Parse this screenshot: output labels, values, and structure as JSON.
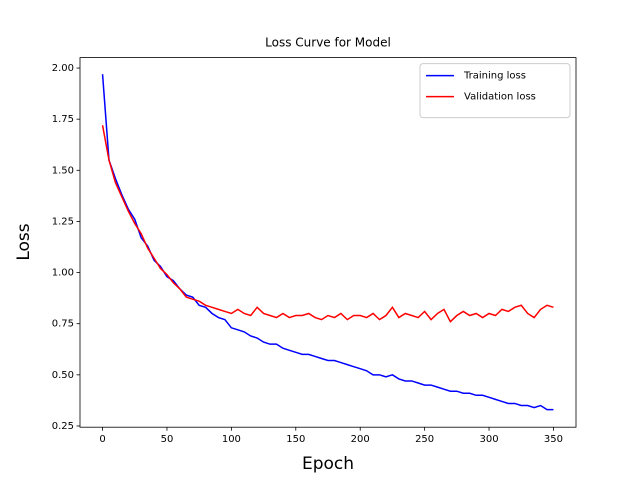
{
  "chart_data": {
    "type": "line",
    "title": "Loss Curve for  Model",
    "x_label": "Epoch",
    "y_label": "Loss",
    "x": [
      0,
      5,
      10,
      15,
      20,
      25,
      30,
      35,
      40,
      45,
      50,
      55,
      60,
      65,
      70,
      75,
      80,
      85,
      90,
      95,
      100,
      105,
      110,
      115,
      120,
      125,
      130,
      135,
      140,
      145,
      150,
      155,
      160,
      165,
      170,
      175,
      180,
      185,
      190,
      195,
      200,
      205,
      210,
      215,
      220,
      225,
      230,
      235,
      240,
      245,
      250,
      255,
      260,
      265,
      270,
      275,
      280,
      285,
      290,
      295,
      300,
      305,
      310,
      315,
      320,
      325,
      330,
      335,
      340,
      345,
      350
    ],
    "series": [
      {
        "name": "Training loss",
        "color": "#0000ff",
        "values": [
          1.97,
          1.55,
          1.46,
          1.38,
          1.31,
          1.26,
          1.17,
          1.13,
          1.06,
          1.03,
          0.98,
          0.96,
          0.92,
          0.89,
          0.88,
          0.84,
          0.83,
          0.8,
          0.78,
          0.77,
          0.73,
          0.72,
          0.71,
          0.69,
          0.68,
          0.66,
          0.65,
          0.65,
          0.63,
          0.62,
          0.61,
          0.6,
          0.6,
          0.59,
          0.58,
          0.57,
          0.57,
          0.56,
          0.55,
          0.54,
          0.53,
          0.52,
          0.5,
          0.5,
          0.49,
          0.5,
          0.48,
          0.47,
          0.47,
          0.46,
          0.45,
          0.45,
          0.44,
          0.43,
          0.42,
          0.42,
          0.41,
          0.41,
          0.4,
          0.4,
          0.39,
          0.38,
          0.37,
          0.36,
          0.36,
          0.35,
          0.35,
          0.34,
          0.35,
          0.33,
          0.33
        ]
      },
      {
        "name": "Validation loss",
        "color": "#ff0000",
        "values": [
          1.72,
          1.55,
          1.44,
          1.37,
          1.3,
          1.24,
          1.19,
          1.12,
          1.07,
          1.02,
          0.99,
          0.95,
          0.92,
          0.88,
          0.87,
          0.86,
          0.84,
          0.83,
          0.82,
          0.81,
          0.8,
          0.82,
          0.8,
          0.79,
          0.83,
          0.8,
          0.79,
          0.78,
          0.8,
          0.78,
          0.79,
          0.79,
          0.8,
          0.78,
          0.77,
          0.79,
          0.78,
          0.8,
          0.77,
          0.79,
          0.79,
          0.78,
          0.8,
          0.77,
          0.79,
          0.83,
          0.78,
          0.8,
          0.79,
          0.78,
          0.81,
          0.77,
          0.8,
          0.82,
          0.76,
          0.79,
          0.81,
          0.79,
          0.8,
          0.78,
          0.8,
          0.79,
          0.82,
          0.81,
          0.83,
          0.84,
          0.8,
          0.78,
          0.82,
          0.84,
          0.83
        ]
      }
    ],
    "xlim": [
      -17.5,
      367.5
    ],
    "ylim": [
      0.244,
      2.051
    ],
    "xticks": [
      0,
      50,
      100,
      150,
      200,
      250,
      300,
      350
    ],
    "yticks": [
      0.25,
      {
        "value": 0.5,
        "label": "0.50"
      },
      0.75,
      {
        "value": 1,
        "label": "1.00"
      },
      1.25,
      {
        "value": 1.5,
        "label": "1.50"
      },
      1.75,
      {
        "value": 2,
        "label": "2.00"
      }
    ],
    "legend": "upper right"
  }
}
